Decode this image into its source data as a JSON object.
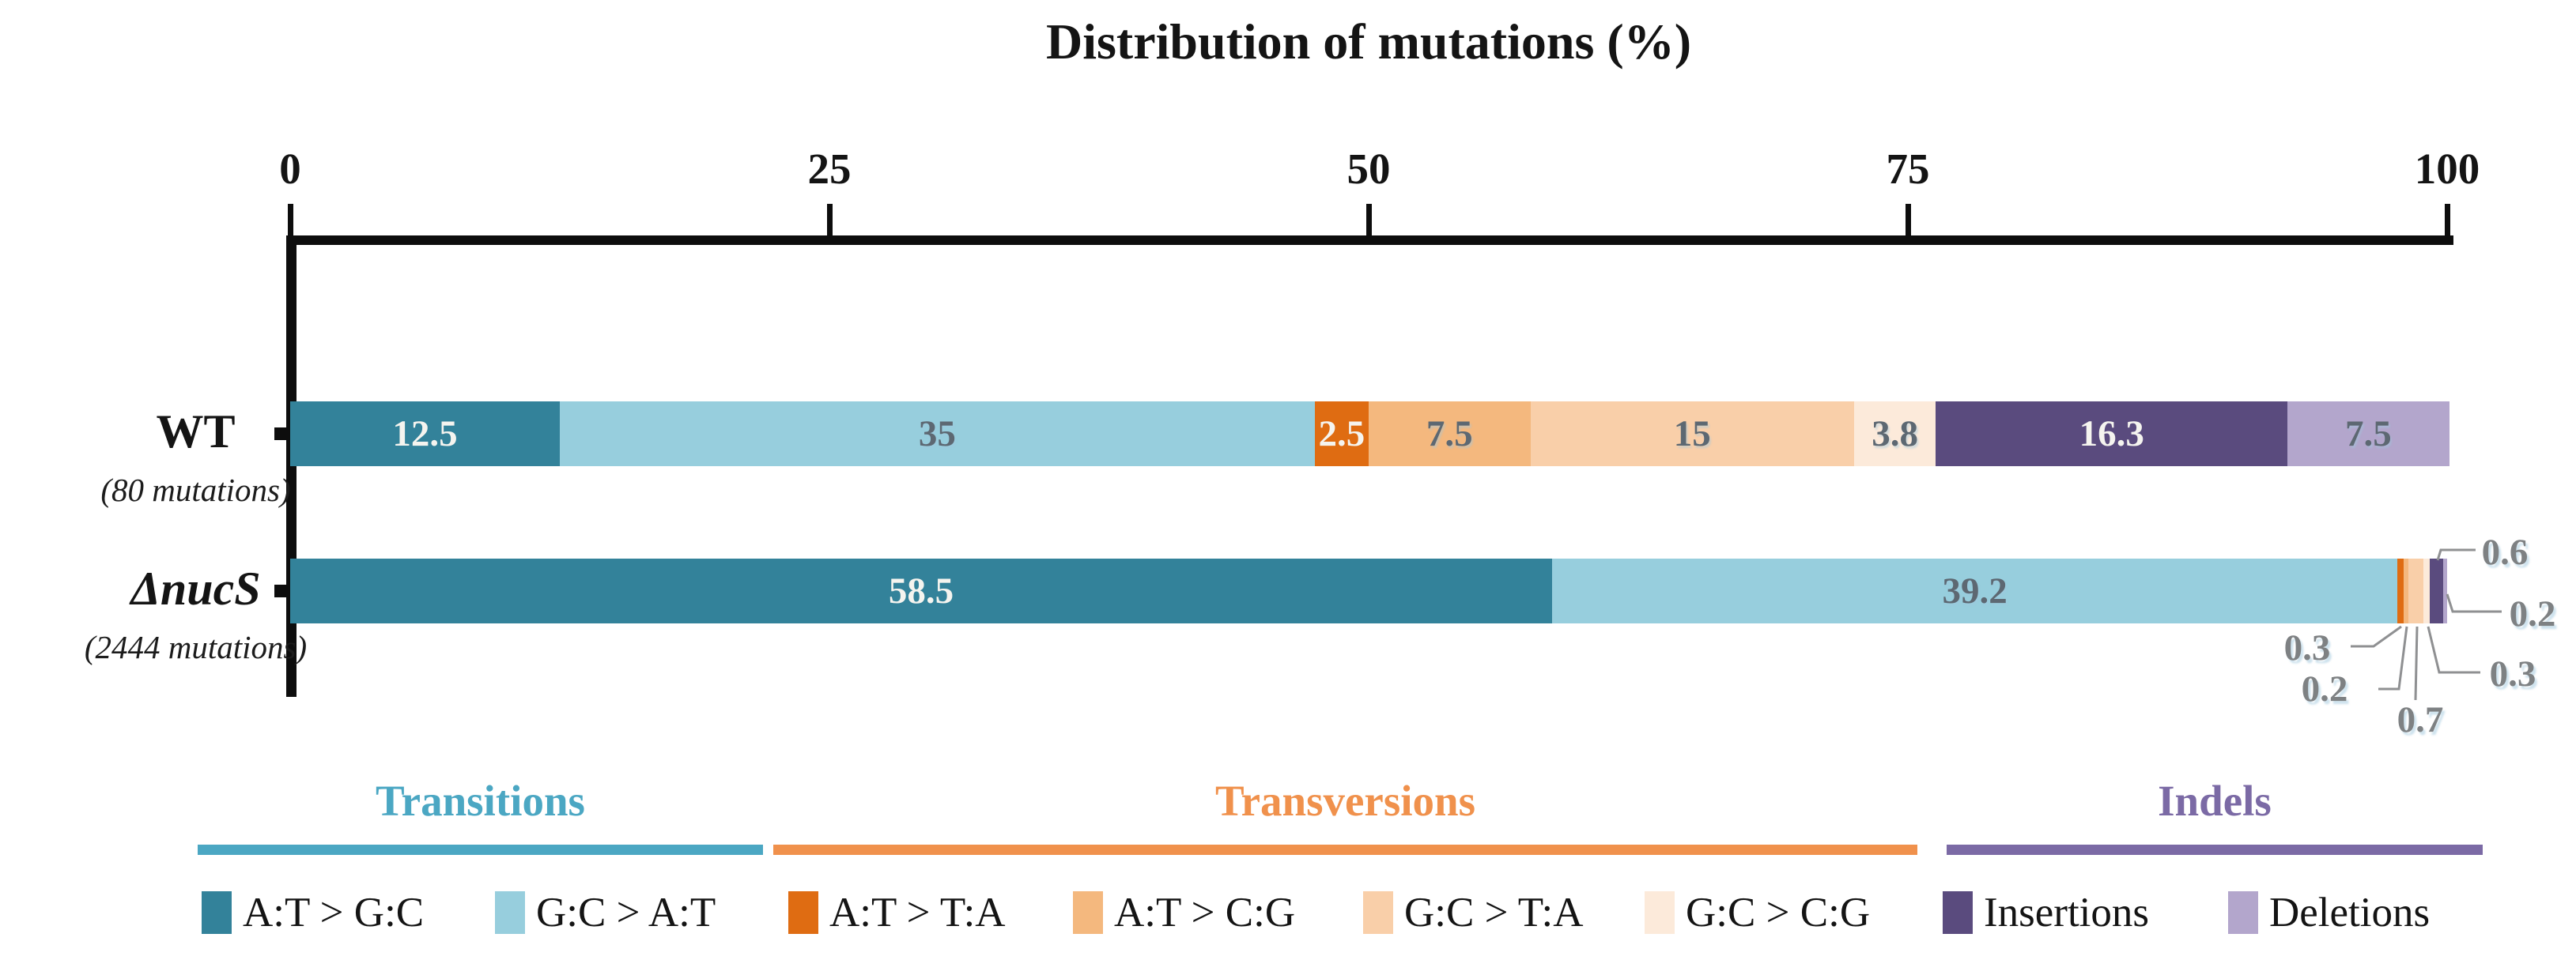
{
  "title": "Distribution of mutations (%)",
  "chart_data": {
    "type": "bar",
    "orientation": "horizontal",
    "stacked": true,
    "title": "Distribution of mutations (%)",
    "xlim": [
      0,
      100
    ],
    "x_ticks": [
      "0",
      "25",
      "50",
      "75",
      "100"
    ],
    "grid": false,
    "legend_position": "bottom",
    "categories": [
      {
        "label": "WT",
        "sublabel": "(80 mutations)",
        "italic": false
      },
      {
        "label": "ΔnucS",
        "sublabel": "(2444 mutations)",
        "italic": true
      }
    ],
    "series": [
      {
        "name": "A:T > G:C",
        "group": "Transitions",
        "color": "#33829a",
        "label_tone": "light",
        "values": [
          12.5,
          58.5
        ],
        "value_labels": [
          "12.5",
          "58.5"
        ]
      },
      {
        "name": "G:C > A:T",
        "group": "Transitions",
        "color": "#97cedd",
        "label_tone": "dark",
        "values": [
          35,
          39.2
        ],
        "value_labels": [
          "35",
          "39.2"
        ]
      },
      {
        "name": "A:T > T:A",
        "group": "Transversions",
        "color": "#df6c12",
        "label_tone": "light",
        "values": [
          2.5,
          0.3
        ],
        "value_labels": [
          "2.5",
          "0.3"
        ]
      },
      {
        "name": "A:T > C:G",
        "group": "Transversions",
        "color": "#f4b87e",
        "label_tone": "dark",
        "values": [
          7.5,
          0.2
        ],
        "value_labels": [
          "7.5",
          "0.2"
        ]
      },
      {
        "name": "G:C > T:A",
        "group": "Transversions",
        "color": "#f9cfa9",
        "label_tone": "dark",
        "values": [
          15,
          0.7
        ],
        "value_labels": [
          "15",
          "0.7"
        ]
      },
      {
        "name": "G:C > C:G",
        "group": "Transversions",
        "color": "#fceada",
        "label_tone": "dark",
        "values": [
          3.8,
          0.3
        ],
        "value_labels": [
          "3.8",
          "0.3"
        ]
      },
      {
        "name": "Insertions",
        "group": "Indels",
        "color": "#5a4b7e",
        "label_tone": "light",
        "values": [
          16.3,
          0.6
        ],
        "value_labels": [
          "16.3",
          "0.6"
        ]
      },
      {
        "name": "Deletions",
        "group": "Indels",
        "color": "#b3a6cc",
        "label_tone": "dark",
        "values": [
          7.5,
          0.2
        ],
        "value_labels": [
          "7.5",
          "0.2"
        ]
      }
    ]
  },
  "legend": {
    "groups": [
      {
        "label": "Transitions",
        "color": "#4ba7c3"
      },
      {
        "label": "Transversions",
        "color": "#f0914c"
      },
      {
        "label": "Indels",
        "color": "#7b6aa5"
      }
    ]
  }
}
